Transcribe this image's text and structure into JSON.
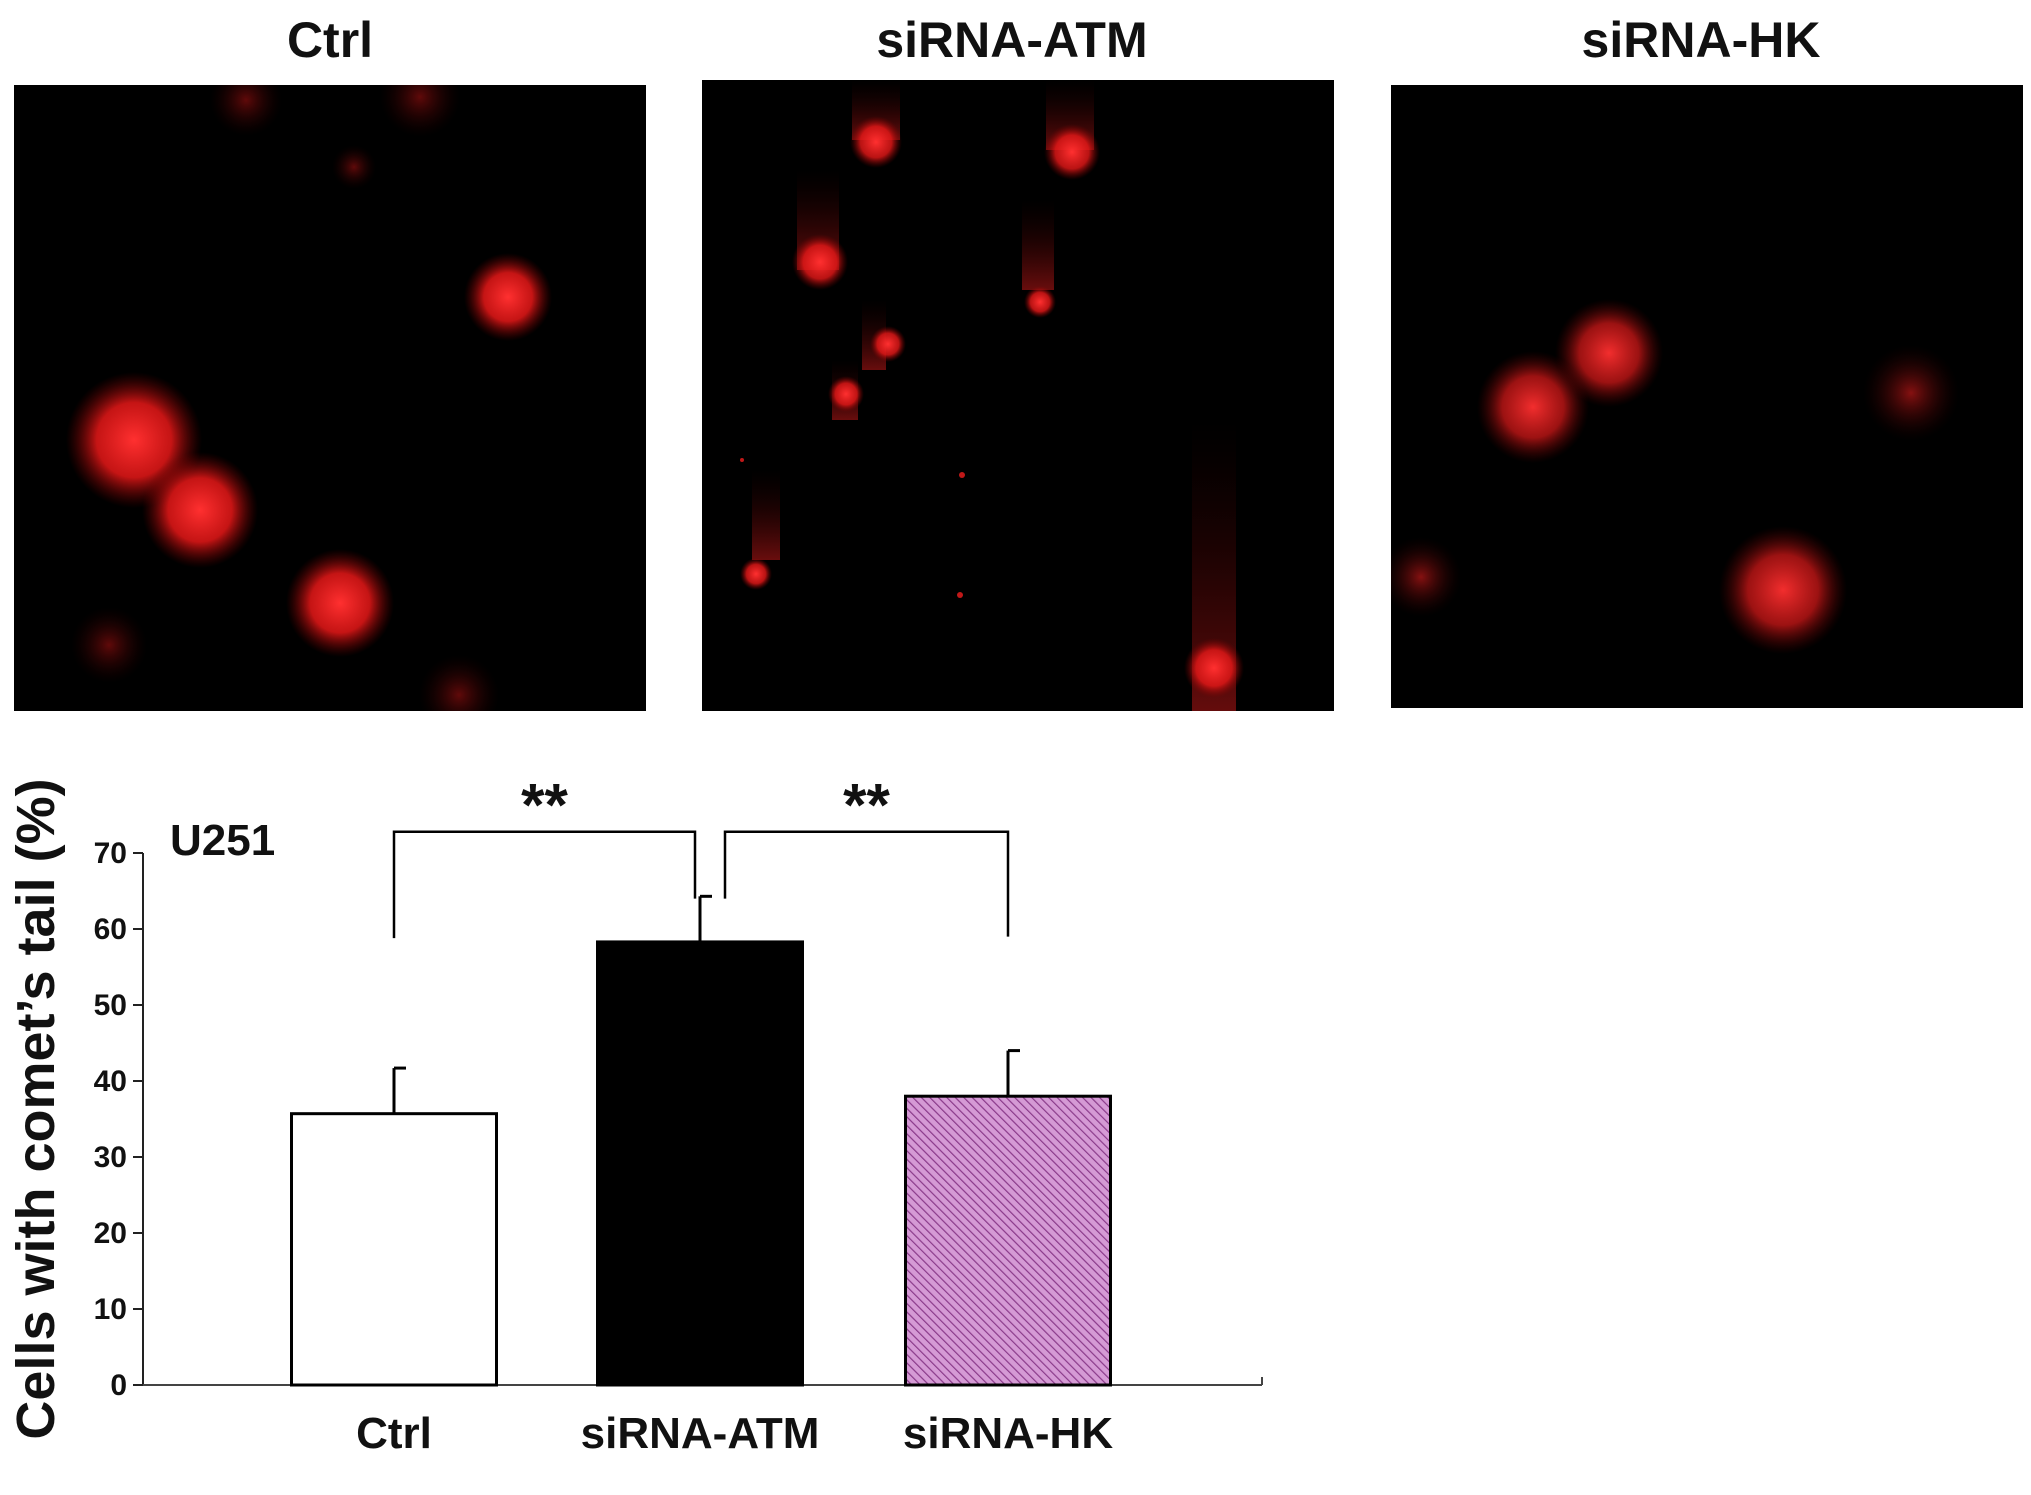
{
  "panels": [
    {
      "title": "Ctrl"
    },
    {
      "title": "siRNA-ATM"
    },
    {
      "title": "siRNA-HK"
    }
  ],
  "colors": {
    "nucleus": "#ff2a2a",
    "ctrl_bar": "#ffffff",
    "atm_bar": "#000000",
    "hk_bar": "#c07ac0"
  },
  "chart_data": {
    "type": "bar",
    "title": "",
    "annotation": "U251",
    "ylabel": "Cells with comet’s tail (%)",
    "xlabel": "",
    "ylim": [
      0,
      70
    ],
    "yticks": [
      0,
      10,
      20,
      30,
      40,
      50,
      60,
      70
    ],
    "categories": [
      "Ctrl",
      "siRNA-ATM",
      "siRNA-HK"
    ],
    "values": [
      35.7,
      58.3,
      38.0
    ],
    "errors": [
      6.0,
      6.0,
      6.0
    ],
    "bar_styles": [
      "white",
      "black",
      "purple-hatched"
    ],
    "significance": [
      {
        "from": 0,
        "to": 1,
        "label": "**"
      },
      {
        "from": 1,
        "to": 2,
        "label": "**"
      }
    ],
    "grid": false
  }
}
